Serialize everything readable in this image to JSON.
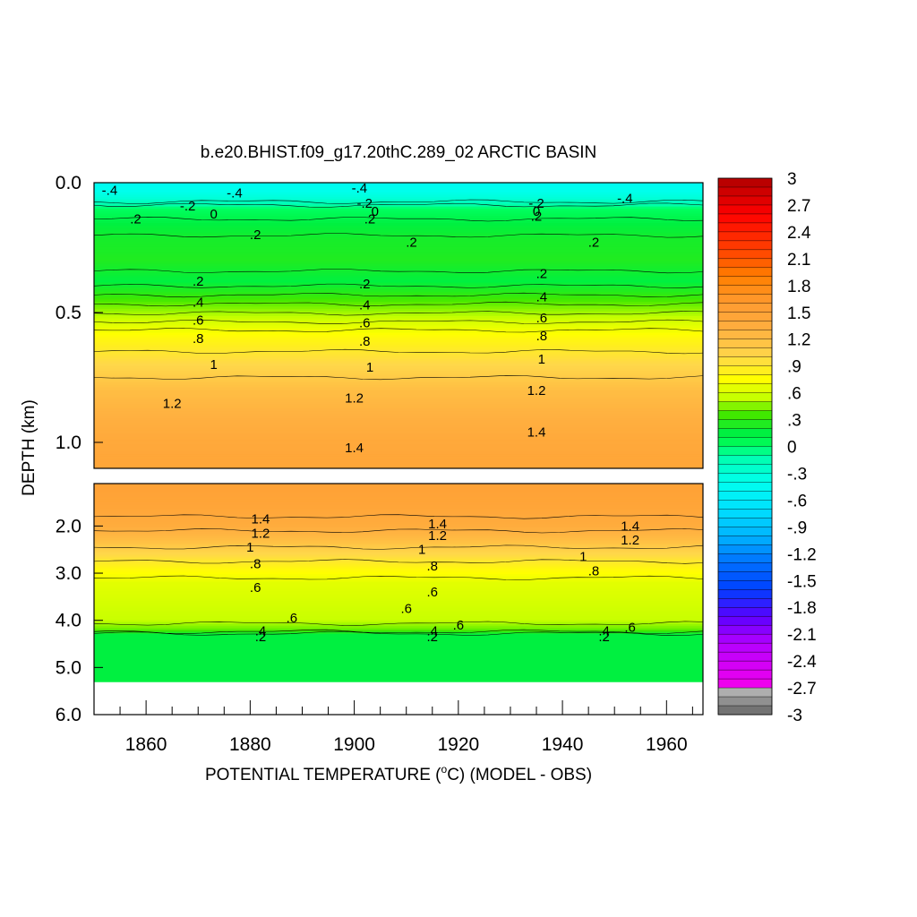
{
  "chart_data": {
    "type": "heatmap",
    "title": "b.e20.BHIST.f09_g17.20thC.289_02 ARCTIC BASIN",
    "xlabel_before": "POTENTIAL TEMPERATURE (",
    "xlabel_sup": "o",
    "xlabel_after": "C) (MODEL - OBS)",
    "ylabel": "DEPTH (km)",
    "xlim": [
      1850,
      1967
    ],
    "x_ticks": [
      "1860",
      "1880",
      "1900",
      "1920",
      "1940",
      "1960"
    ],
    "x_tick_values": [
      1860,
      1880,
      1900,
      1920,
      1940,
      1960
    ],
    "upper_panel": {
      "depth_range_km": [
        0.0,
        1.1
      ],
      "y_ticks": [
        "0.0",
        "0.5",
        "1.0"
      ],
      "y_tick_values": [
        0.0,
        0.5,
        1.0
      ],
      "profile_depth_km": [
        0.0,
        0.03,
        0.06,
        0.1,
        0.16,
        0.22,
        0.3,
        0.38,
        0.45,
        0.52,
        0.6,
        0.7,
        0.8,
        0.9,
        1.0,
        1.1
      ],
      "profile_value_c": [
        -0.45,
        -0.4,
        -0.3,
        0.0,
        0.15,
        0.22,
        0.25,
        0.15,
        0.35,
        0.55,
        0.8,
        1.0,
        1.2,
        1.3,
        1.4,
        1.45
      ],
      "contour_labels": [
        {
          "x": 1853,
          "depth": 0.03,
          "text": "-.4"
        },
        {
          "x": 1877,
          "depth": 0.04,
          "text": "-.4"
        },
        {
          "x": 1901,
          "depth": 0.02,
          "text": "-.4"
        },
        {
          "x": 1952,
          "depth": 0.06,
          "text": "-.4"
        },
        {
          "x": 1858,
          "depth": 0.14,
          "text": ".2"
        },
        {
          "x": 1868,
          "depth": 0.09,
          "text": "-.2"
        },
        {
          "x": 1873,
          "depth": 0.12,
          "text": "0"
        },
        {
          "x": 1902,
          "depth": 0.08,
          "text": "-.2"
        },
        {
          "x": 1904,
          "depth": 0.11,
          "text": "0"
        },
        {
          "x": 1903,
          "depth": 0.14,
          "text": ".2"
        },
        {
          "x": 1935,
          "depth": 0.08,
          "text": "-.2"
        },
        {
          "x": 1935,
          "depth": 0.11,
          "text": "0"
        },
        {
          "x": 1935,
          "depth": 0.13,
          "text": ".2"
        },
        {
          "x": 1881,
          "depth": 0.2,
          "text": ".2"
        },
        {
          "x": 1911,
          "depth": 0.23,
          "text": ".2"
        },
        {
          "x": 1946,
          "depth": 0.23,
          "text": ".2"
        },
        {
          "x": 1870,
          "depth": 0.38,
          "text": ".2"
        },
        {
          "x": 1870,
          "depth": 0.46,
          "text": ".4"
        },
        {
          "x": 1870,
          "depth": 0.53,
          "text": ".6"
        },
        {
          "x": 1870,
          "depth": 0.6,
          "text": ".8"
        },
        {
          "x": 1873,
          "depth": 0.7,
          "text": "1"
        },
        {
          "x": 1865,
          "depth": 0.85,
          "text": "1.2"
        },
        {
          "x": 1902,
          "depth": 0.39,
          "text": ".2"
        },
        {
          "x": 1902,
          "depth": 0.47,
          "text": ".4"
        },
        {
          "x": 1902,
          "depth": 0.54,
          "text": ".6"
        },
        {
          "x": 1902,
          "depth": 0.61,
          "text": ".8"
        },
        {
          "x": 1903,
          "depth": 0.71,
          "text": "1"
        },
        {
          "x": 1900,
          "depth": 0.83,
          "text": "1.2"
        },
        {
          "x": 1900,
          "depth": 1.02,
          "text": "1.4"
        },
        {
          "x": 1936,
          "depth": 0.35,
          "text": ".2"
        },
        {
          "x": 1936,
          "depth": 0.44,
          "text": ".4"
        },
        {
          "x": 1936,
          "depth": 0.52,
          "text": ".6"
        },
        {
          "x": 1936,
          "depth": 0.59,
          "text": ".8"
        },
        {
          "x": 1936,
          "depth": 0.68,
          "text": "1"
        },
        {
          "x": 1935,
          "depth": 0.8,
          "text": "1.2"
        },
        {
          "x": 1935,
          "depth": 0.96,
          "text": "1.4"
        }
      ]
    },
    "lower_panel": {
      "depth_range_km": [
        1.1,
        6.0
      ],
      "y_ticks": [
        "2.0",
        "3.0",
        "4.0",
        "5.0",
        "6.0"
      ],
      "y_tick_values": [
        2.0,
        3.0,
        4.0,
        5.0,
        6.0
      ],
      "profile_depth_km": [
        1.1,
        1.6,
        2.0,
        2.3,
        2.6,
        2.9,
        3.2,
        3.6,
        4.0,
        4.2,
        4.3,
        5.3
      ],
      "profile_value_c": [
        1.5,
        1.45,
        1.35,
        1.2,
        1.0,
        0.8,
        0.65,
        0.6,
        0.55,
        0.4,
        0.15,
        0.15
      ],
      "no_data_below_km": 5.3,
      "contour_labels": [
        {
          "x": 1882,
          "depth": 1.85,
          "text": "1.4"
        },
        {
          "x": 1882,
          "depth": 2.15,
          "text": "1.2"
        },
        {
          "x": 1880,
          "depth": 2.45,
          "text": "1"
        },
        {
          "x": 1881,
          "depth": 2.8,
          "text": ".8"
        },
        {
          "x": 1881,
          "depth": 3.3,
          "text": ".6"
        },
        {
          "x": 1888,
          "depth": 3.95,
          "text": ".6"
        },
        {
          "x": 1882,
          "depth": 4.22,
          "text": ".4"
        },
        {
          "x": 1882,
          "depth": 4.35,
          "text": ".2"
        },
        {
          "x": 1916,
          "depth": 1.95,
          "text": "1.4"
        },
        {
          "x": 1916,
          "depth": 2.2,
          "text": "1.2"
        },
        {
          "x": 1913,
          "depth": 2.5,
          "text": "1"
        },
        {
          "x": 1915,
          "depth": 2.85,
          "text": ".8"
        },
        {
          "x": 1915,
          "depth": 3.4,
          "text": ".6"
        },
        {
          "x": 1910,
          "depth": 3.75,
          "text": ".6"
        },
        {
          "x": 1915,
          "depth": 4.22,
          "text": ".4"
        },
        {
          "x": 1915,
          "depth": 4.35,
          "text": ".2"
        },
        {
          "x": 1920,
          "depth": 4.1,
          "text": ".6"
        },
        {
          "x": 1953,
          "depth": 2.0,
          "text": "1.4"
        },
        {
          "x": 1953,
          "depth": 2.3,
          "text": "1.2"
        },
        {
          "x": 1944,
          "depth": 2.65,
          "text": "1"
        },
        {
          "x": 1946,
          "depth": 2.95,
          "text": ".8"
        },
        {
          "x": 1948,
          "depth": 4.22,
          "text": ".4"
        },
        {
          "x": 1948,
          "depth": 4.35,
          "text": ".2"
        },
        {
          "x": 1953,
          "depth": 4.15,
          "text": ".6"
        }
      ]
    },
    "colorbar": {
      "labels": [
        "3",
        "2.7",
        "2.4",
        "2.1",
        "1.8",
        "1.5",
        "1.2",
        ".9",
        ".6",
        ".3",
        "0",
        "-.3",
        "-.6",
        "-.9",
        "-1.2",
        "-1.5",
        "-1.8",
        "-2.1",
        "-2.4",
        "-2.7",
        "-3"
      ],
      "label_values": [
        3,
        2.7,
        2.4,
        2.1,
        1.8,
        1.5,
        1.2,
        0.9,
        0.6,
        0.3,
        0,
        -0.3,
        -0.6,
        -0.9,
        -1.2,
        -1.5,
        -1.8,
        -2.1,
        -2.4,
        -2.7,
        -3
      ],
      "range": [
        -3,
        3
      ],
      "step": 0.1
    }
  }
}
